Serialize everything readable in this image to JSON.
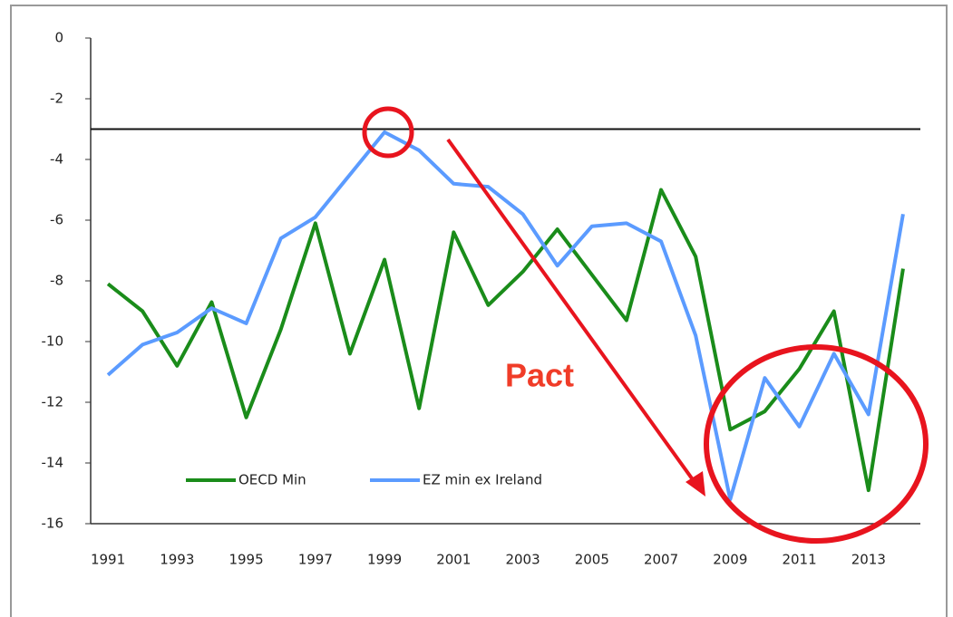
{
  "chart_data": {
    "type": "line",
    "x": [
      1991,
      1992,
      1993,
      1994,
      1995,
      1996,
      1997,
      1998,
      1999,
      2000,
      2001,
      2002,
      2003,
      2004,
      2005,
      2006,
      2007,
      2008,
      2009,
      2010,
      2011,
      2012,
      2013,
      2014
    ],
    "series": [
      {
        "name": "OECD Min",
        "color": "#1a8c1a",
        "values": [
          -8.1,
          -9.0,
          -10.8,
          -8.7,
          -12.5,
          -9.6,
          -6.1,
          -10.4,
          -7.3,
          -12.2,
          -6.4,
          -8.8,
          -7.7,
          -6.3,
          -7.8,
          -9.3,
          -5.0,
          -7.2,
          -12.9,
          -12.3,
          -10.9,
          -9.0,
          -14.9,
          -7.6
        ]
      },
      {
        "name": "EZ min ex Ireland",
        "color": "#5b9bff",
        "values": [
          -11.1,
          -10.1,
          -9.7,
          -8.9,
          -9.4,
          -6.6,
          -5.9,
          -4.5,
          -3.1,
          -3.7,
          -4.8,
          -4.9,
          -5.8,
          -7.5,
          -6.2,
          -6.1,
          -6.7,
          -9.8,
          -15.2,
          -11.2,
          -12.8,
          -10.4,
          -12.4,
          -5.8
        ]
      }
    ],
    "xlim": [
      1990.5,
      2014.5
    ],
    "xticks": [
      1991,
      1993,
      1995,
      1997,
      1999,
      2001,
      2003,
      2005,
      2007,
      2009,
      2011,
      2013
    ],
    "ylim": [
      -16,
      0
    ],
    "yticks": [
      0,
      -2,
      -4,
      -6,
      -8,
      -10,
      -12,
      -14,
      -16
    ],
    "reference_line": -3,
    "annotation": "Pact",
    "legend": "lower left"
  }
}
